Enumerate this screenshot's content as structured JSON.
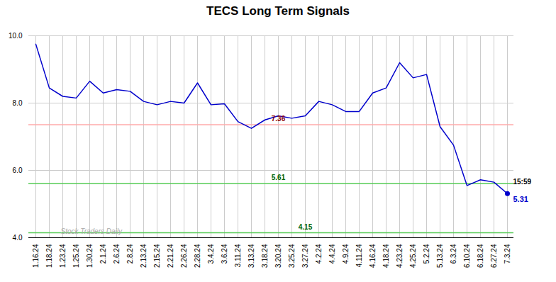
{
  "chart_data": {
    "type": "line",
    "title": "TECS Long Term Signals",
    "categories": [
      "1.16.24",
      "1.18.24",
      "1.23.24",
      "1.25.24",
      "1.30.24",
      "2.1.24",
      "2.6.24",
      "2.8.24",
      "2.13.24",
      "2.15.24",
      "2.21.24",
      "2.26.24",
      "2.28.24",
      "3.4.24",
      "3.6.24",
      "3.11.24",
      "3.13.24",
      "3.18.24",
      "3.20.24",
      "3.25.24",
      "3.27.24",
      "4.2.24",
      "4.4.24",
      "4.9.24",
      "4.11.24",
      "4.16.24",
      "4.18.24",
      "4.23.24",
      "4.25.24",
      "5.2.24",
      "5.13.24",
      "6.3.24",
      "6.10.24",
      "6.18.24",
      "6.27.24",
      "7.3.24"
    ],
    "values": [
      9.75,
      8.45,
      8.2,
      8.15,
      8.65,
      8.3,
      8.4,
      8.35,
      8.05,
      7.95,
      8.05,
      8.0,
      8.6,
      7.95,
      7.98,
      7.45,
      7.25,
      7.5,
      7.62,
      7.55,
      7.62,
      8.05,
      7.95,
      7.75,
      7.75,
      8.3,
      8.45,
      9.2,
      8.75,
      8.85,
      7.3,
      6.75,
      5.55,
      5.72,
      5.65,
      5.31
    ],
    "color": "#0000cc",
    "hlines": [
      {
        "value": 7.36,
        "label": "7.36",
        "color": "#ffaaaa",
        "label_color": "darkred",
        "x": "3.20.24"
      },
      {
        "value": 5.61,
        "label": "5.61",
        "color": "#55cc55",
        "label_color": "darkgreen",
        "x": "3.20.24"
      },
      {
        "value": 4.15,
        "label": "4.15",
        "color": "#55cc55",
        "label_color": "darkgreen",
        "x": "3.27.24"
      }
    ],
    "end_label": {
      "time": "15:59",
      "value": 5.31
    },
    "watermark": "Stock Traders Daily",
    "ylim": [
      4.0,
      10.0
    ],
    "yticks": [
      4,
      6,
      8,
      10
    ],
    "grid": true
  }
}
